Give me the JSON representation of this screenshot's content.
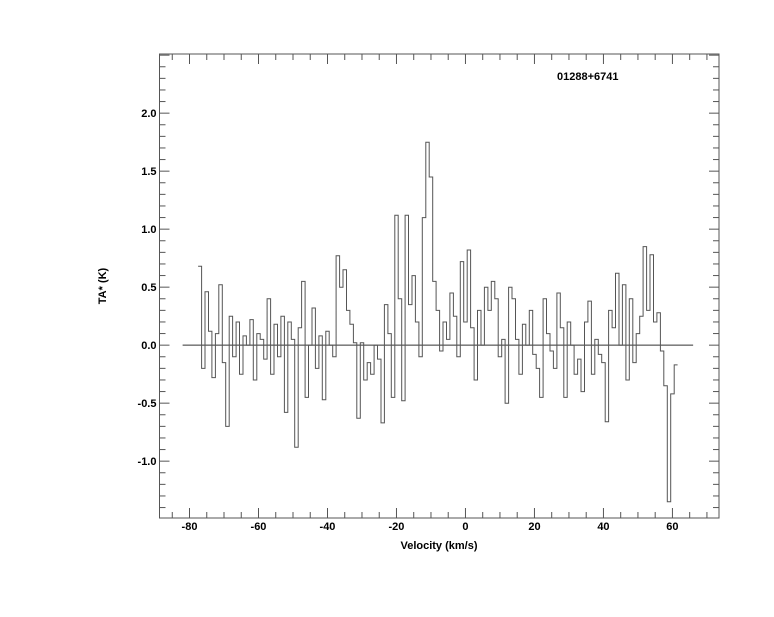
{
  "chart_data": {
    "type": "line",
    "style": "step",
    "title": "01288+6741",
    "xlabel": "Velocity (km/s)",
    "ylabel": "TA* (K)",
    "xlim": [
      -88.7,
      73.5
    ],
    "ylim": [
      -1.49,
      2.51
    ],
    "xticks": [
      -80,
      -60,
      -40,
      -20,
      0,
      20,
      40,
      60
    ],
    "xtick_labels": [
      "-80",
      "-60",
      "-40",
      "-20",
      "0",
      "20",
      "40",
      "60"
    ],
    "yticks": [
      -1.0,
      -0.5,
      0.0,
      0.5,
      1.0,
      1.5,
      2.0
    ],
    "ytick_labels": [
      "-1.0",
      "-0.5",
      "0.0",
      "0.5",
      "1.0",
      "1.5",
      "2.0"
    ],
    "baseline": {
      "y": 0.0,
      "x_range": [
        -82,
        66
      ]
    },
    "grid": false,
    "line_color": "#555555",
    "x": [
      -77,
      -76,
      -75,
      -74,
      -73,
      -72,
      -71,
      -70,
      -69,
      -68,
      -67,
      -66,
      -65,
      -64,
      -63,
      -62,
      -61,
      -60,
      -59,
      -58,
      -57,
      -56,
      -55,
      -54,
      -53,
      -52,
      -51,
      -50,
      -49,
      -48,
      -47,
      -46,
      -45,
      -44,
      -43,
      -42,
      -41,
      -40,
      -39,
      -38,
      -37,
      -36,
      -35,
      -34,
      -33,
      -32,
      -31,
      -30,
      -29,
      -28,
      -27,
      -26,
      -25,
      -24,
      -23,
      -22,
      -21,
      -20,
      -19,
      -18,
      -17,
      -16,
      -15,
      -14,
      -13,
      -12,
      -11,
      -10,
      -9,
      -8,
      -7,
      -6,
      -5,
      -4,
      -3,
      -2,
      -1,
      0,
      1,
      2,
      3,
      4,
      5,
      6,
      7,
      8,
      9,
      10,
      11,
      12,
      13,
      14,
      15,
      16,
      17,
      18,
      19,
      20,
      21,
      22,
      23,
      24,
      25,
      26,
      27,
      28,
      29,
      30,
      31,
      32,
      33,
      34,
      35,
      36,
      37,
      38,
      39,
      40,
      41,
      42,
      43,
      44,
      45,
      46,
      47,
      48,
      49,
      50,
      51,
      52,
      53,
      54,
      55,
      56,
      57,
      58,
      59,
      60,
      61
    ],
    "y": [
      0.68,
      -0.2,
      0.46,
      0.12,
      -0.28,
      0.1,
      0.52,
      -0.15,
      -0.7,
      0.25,
      -0.1,
      0.2,
      -0.25,
      0.08,
      0.0,
      0.22,
      -0.3,
      0.1,
      0.05,
      -0.12,
      0.4,
      -0.25,
      0.18,
      -0.1,
      0.25,
      -0.58,
      0.2,
      0.05,
      -0.88,
      0.15,
      0.55,
      -0.45,
      0.0,
      0.32,
      -0.2,
      0.08,
      -0.47,
      0.12,
      0.0,
      -0.1,
      0.77,
      0.5,
      0.65,
      0.3,
      0.18,
      0.02,
      -0.63,
      0.02,
      -0.3,
      -0.15,
      -0.25,
      0.0,
      -0.12,
      -0.67,
      0.35,
      0.1,
      -0.45,
      1.12,
      0.4,
      -0.48,
      1.12,
      0.35,
      0.6,
      0.2,
      -0.1,
      1.1,
      1.75,
      1.45,
      0.55,
      0.3,
      -0.05,
      0.2,
      0.05,
      0.45,
      0.25,
      -0.1,
      0.72,
      0.2,
      0.82,
      0.15,
      -0.3,
      0.3,
      0.0,
      0.5,
      0.3,
      0.55,
      0.4,
      -0.1,
      0.05,
      -0.5,
      0.5,
      0.4,
      0.05,
      -0.25,
      0.18,
      0.0,
      0.3,
      -0.08,
      -0.2,
      -0.45,
      0.4,
      0.1,
      -0.05,
      -0.2,
      0.45,
      0.15,
      -0.45,
      0.2,
      0.0,
      -0.25,
      -0.12,
      -0.4,
      0.2,
      0.38,
      -0.25,
      0.05,
      -0.08,
      -0.15,
      -0.66,
      0.3,
      0.15,
      0.62,
      0.0,
      0.52,
      -0.3,
      0.4,
      -0.15,
      0.1,
      0.25,
      0.85,
      0.3,
      0.78,
      0.2,
      0.28,
      -0.05,
      -0.35,
      -1.35,
      -0.42,
      -0.17
    ]
  }
}
